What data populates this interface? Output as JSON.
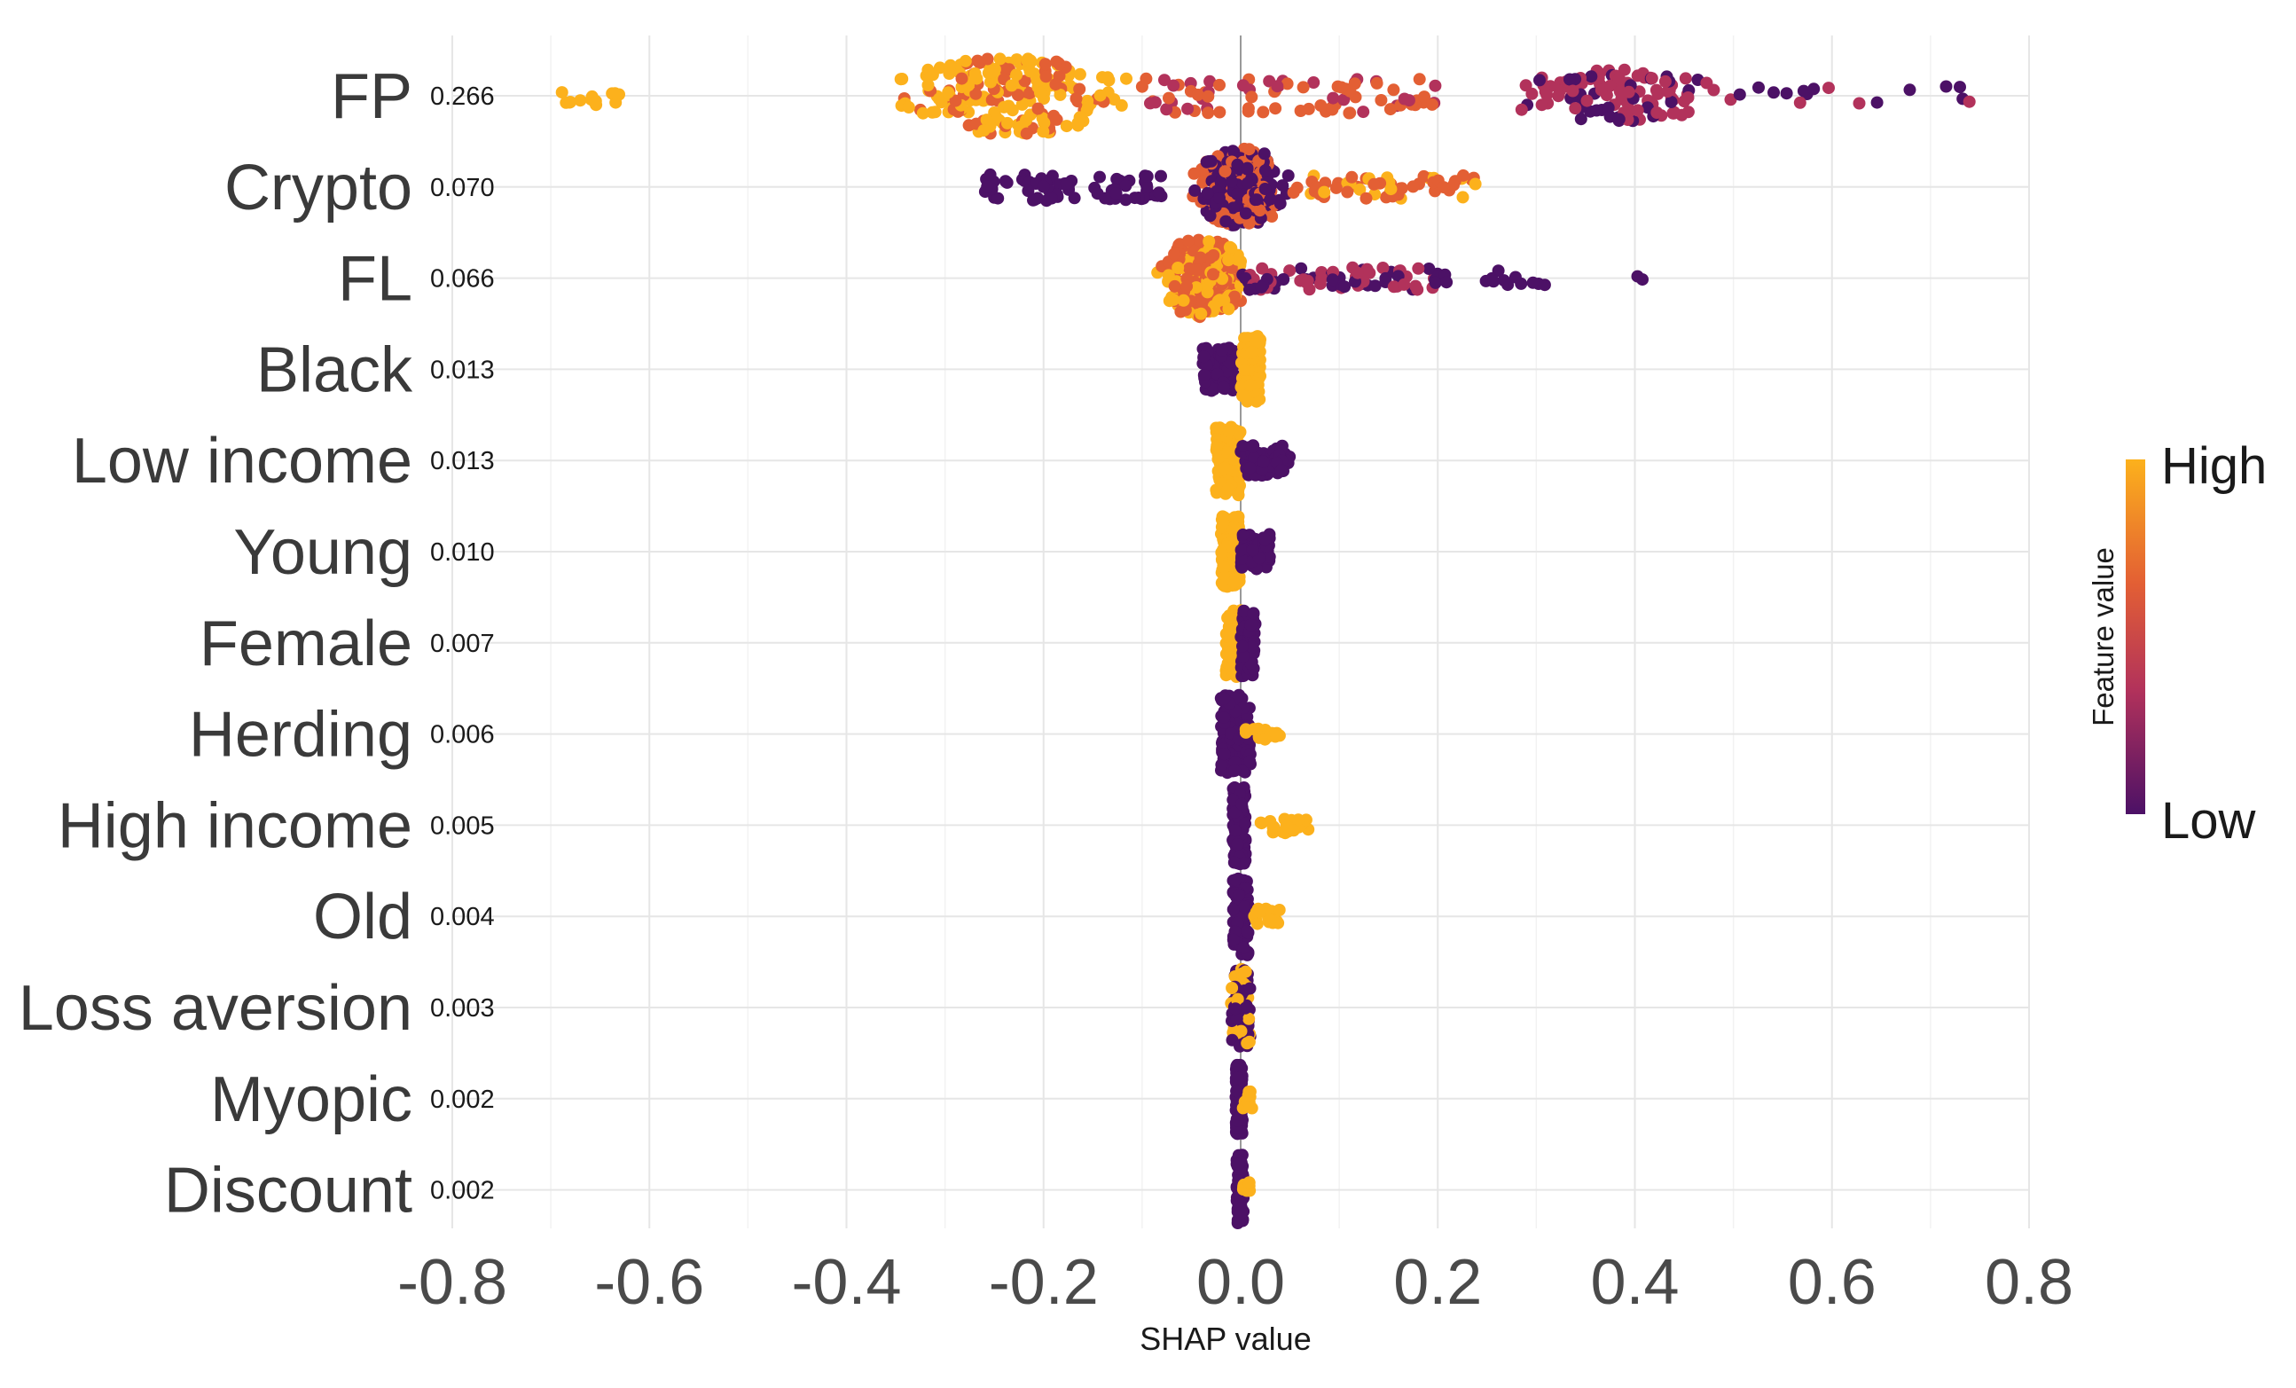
{
  "chart_data": {
    "type": "scatter",
    "subtype": "shap-beeswarm",
    "title": "",
    "xlabel": "SHAP value",
    "ylabel": "",
    "xlim": [
      -0.8,
      0.8
    ],
    "x_ticks": [
      -0.8,
      -0.6,
      -0.4,
      -0.2,
      0.0,
      0.2,
      0.4,
      0.6,
      0.8
    ],
    "x_tick_labels": [
      "-0.8",
      "-0.6",
      "-0.4",
      "-0.2",
      "0.0",
      "0.2",
      "0.4",
      "0.6",
      "0.8"
    ],
    "grid": true,
    "zero_line": true,
    "legend": {
      "title": "Feature value",
      "high_label": "High",
      "low_label": "Low",
      "position": "right",
      "colors": {
        "high": "#fcb11c",
        "mid": "#e35f34",
        "midlow": "#b2325b",
        "low": "#4c1166"
      }
    },
    "features": [
      {
        "name": "FP",
        "importance": "0.266",
        "clusters": [
          {
            "min": -0.69,
            "max": -0.63,
            "n": 14,
            "spread": 0.25,
            "color": "high"
          },
          {
            "min": -0.41,
            "max": -0.1,
            "n": 210,
            "spread": 1.0,
            "peak": -0.23,
            "color": "high",
            "alt": "mid",
            "altFrac": 0.35
          },
          {
            "min": -0.1,
            "max": 0.2,
            "n": 80,
            "spread": 0.45,
            "color": "mid",
            "alt": "midlow",
            "altFrac": 0.45
          },
          {
            "min": 0.22,
            "max": 0.5,
            "n": 120,
            "spread": 0.7,
            "peak": 0.38,
            "color": "midlow",
            "alt": "low",
            "altFrac": 0.3
          },
          {
            "min": 0.5,
            "max": 0.74,
            "n": 16,
            "spread": 0.25,
            "color": "low",
            "alt": "midlow",
            "altFrac": 0.4
          }
        ]
      },
      {
        "name": "Crypto",
        "importance": "0.070",
        "clusters": [
          {
            "min": -0.26,
            "max": -0.08,
            "n": 70,
            "spread": 0.35,
            "color": "low"
          },
          {
            "min": -0.06,
            "max": 0.07,
            "n": 260,
            "spread": 1.0,
            "peak": 0.0,
            "color": "low",
            "alt": "mid",
            "altFrac": 0.35
          },
          {
            "min": 0.07,
            "max": 0.24,
            "n": 55,
            "spread": 0.3,
            "color": "mid",
            "alt": "high",
            "altFrac": 0.4
          }
        ]
      },
      {
        "name": "FL",
        "importance": "0.066",
        "clusters": [
          {
            "min": -0.13,
            "max": 0.0,
            "n": 200,
            "spread": 1.0,
            "peak": -0.04,
            "color": "mid",
            "alt": "high",
            "altFrac": 0.4
          },
          {
            "min": 0.0,
            "max": 0.2,
            "n": 75,
            "spread": 0.3,
            "color": "midlow",
            "alt": "low",
            "altFrac": 0.5
          },
          {
            "min": 0.2,
            "max": 0.31,
            "n": 14,
            "spread": 0.2,
            "color": "low"
          },
          {
            "min": 0.39,
            "max": 0.44,
            "n": 2,
            "spread": 0.05,
            "color": "low"
          }
        ]
      },
      {
        "name": "Black",
        "importance": "0.013",
        "clusters": [
          {
            "min": -0.04,
            "max": -0.005,
            "n": 90,
            "spread": 0.55,
            "color": "low"
          },
          {
            "min": 0.0,
            "max": 0.02,
            "n": 110,
            "spread": 0.85,
            "color": "high"
          }
        ]
      },
      {
        "name": "Low income",
        "importance": "0.013",
        "clusters": [
          {
            "min": -0.025,
            "max": 0.0,
            "n": 120,
            "spread": 0.9,
            "color": "high"
          },
          {
            "min": 0.0,
            "max": 0.05,
            "n": 70,
            "spread": 0.4,
            "color": "low"
          }
        ]
      },
      {
        "name": "Young",
        "importance": "0.010",
        "clusters": [
          {
            "min": -0.02,
            "max": 0.0,
            "n": 120,
            "spread": 0.9,
            "color": "high"
          },
          {
            "min": 0.0,
            "max": 0.03,
            "n": 60,
            "spread": 0.45,
            "color": "low"
          }
        ]
      },
      {
        "name": "Female",
        "importance": "0.007",
        "clusters": [
          {
            "min": -0.015,
            "max": 0.0,
            "n": 120,
            "spread": 0.9,
            "color": "high"
          },
          {
            "min": 0.0,
            "max": 0.015,
            "n": 80,
            "spread": 0.85,
            "color": "low"
          }
        ]
      },
      {
        "name": "Herding",
        "importance": "0.006",
        "clusters": [
          {
            "min": -0.02,
            "max": 0.01,
            "n": 130,
            "spread": 1.0,
            "color": "low"
          },
          {
            "min": 0.005,
            "max": 0.04,
            "n": 22,
            "spread": 0.15,
            "color": "high"
          }
        ]
      },
      {
        "name": "High income",
        "importance": "0.005",
        "clusters": [
          {
            "min": -0.008,
            "max": 0.005,
            "n": 120,
            "spread": 1.0,
            "color": "low"
          },
          {
            "min": 0.02,
            "max": 0.07,
            "n": 25,
            "spread": 0.2,
            "color": "high"
          }
        ]
      },
      {
        "name": "Old",
        "importance": "0.004",
        "clusters": [
          {
            "min": -0.008,
            "max": 0.008,
            "n": 120,
            "spread": 1.0,
            "color": "low"
          },
          {
            "min": 0.01,
            "max": 0.04,
            "n": 20,
            "spread": 0.2,
            "color": "high"
          }
        ]
      },
      {
        "name": "Loss aversion",
        "importance": "0.003",
        "clusters": [
          {
            "min": -0.01,
            "max": 0.01,
            "n": 100,
            "spread": 1.0,
            "color": "low",
            "alt": "high",
            "altFrac": 0.4
          }
        ]
      },
      {
        "name": "Myopic",
        "importance": "0.002",
        "clusters": [
          {
            "min": -0.005,
            "max": 0.002,
            "n": 90,
            "spread": 0.9,
            "color": "low"
          },
          {
            "min": 0.002,
            "max": 0.012,
            "n": 10,
            "spread": 0.25,
            "color": "high"
          }
        ]
      },
      {
        "name": "Discount",
        "importance": "0.002",
        "clusters": [
          {
            "min": -0.004,
            "max": 0.003,
            "n": 90,
            "spread": 0.9,
            "color": "low"
          },
          {
            "min": 0.002,
            "max": 0.01,
            "n": 10,
            "spread": 0.25,
            "color": "high"
          }
        ]
      }
    ]
  }
}
